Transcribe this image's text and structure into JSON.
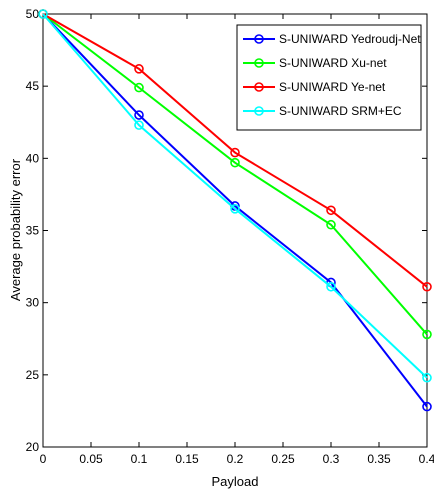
{
  "chart_data": {
    "type": "line",
    "xlabel": "Payload",
    "ylabel": "Average probability error",
    "x": [
      0,
      0.1,
      0.2,
      0.3,
      0.4
    ],
    "xlim": [
      0,
      0.4
    ],
    "ylim": [
      20,
      50
    ],
    "x_ticks": [
      "0",
      "0.05",
      "0.1",
      "0.15",
      "0.2",
      "0.25",
      "0.3",
      "0.35",
      "0.4"
    ],
    "y_ticks": [
      "20",
      "25",
      "30",
      "35",
      "40",
      "45",
      "50"
    ],
    "grid": false,
    "legend_position": "top-right",
    "series": [
      {
        "name": "S-UNIWARD Yedroudj-Net",
        "color": "#0000ff",
        "values": [
          50,
          43.0,
          36.7,
          31.4,
          22.8
        ]
      },
      {
        "name": "S-UNIWARD Xu-net",
        "color": "#00ff00",
        "values": [
          50,
          44.9,
          39.7,
          35.4,
          27.8
        ]
      },
      {
        "name": "S-UNIWARD Ye-net",
        "color": "#ff0000",
        "values": [
          50,
          46.2,
          40.4,
          36.4,
          31.1
        ]
      },
      {
        "name": "S-UNIWARD SRM+EC",
        "color": "#00ffff",
        "values": [
          50,
          42.3,
          36.5,
          31.1,
          24.8
        ]
      }
    ]
  }
}
